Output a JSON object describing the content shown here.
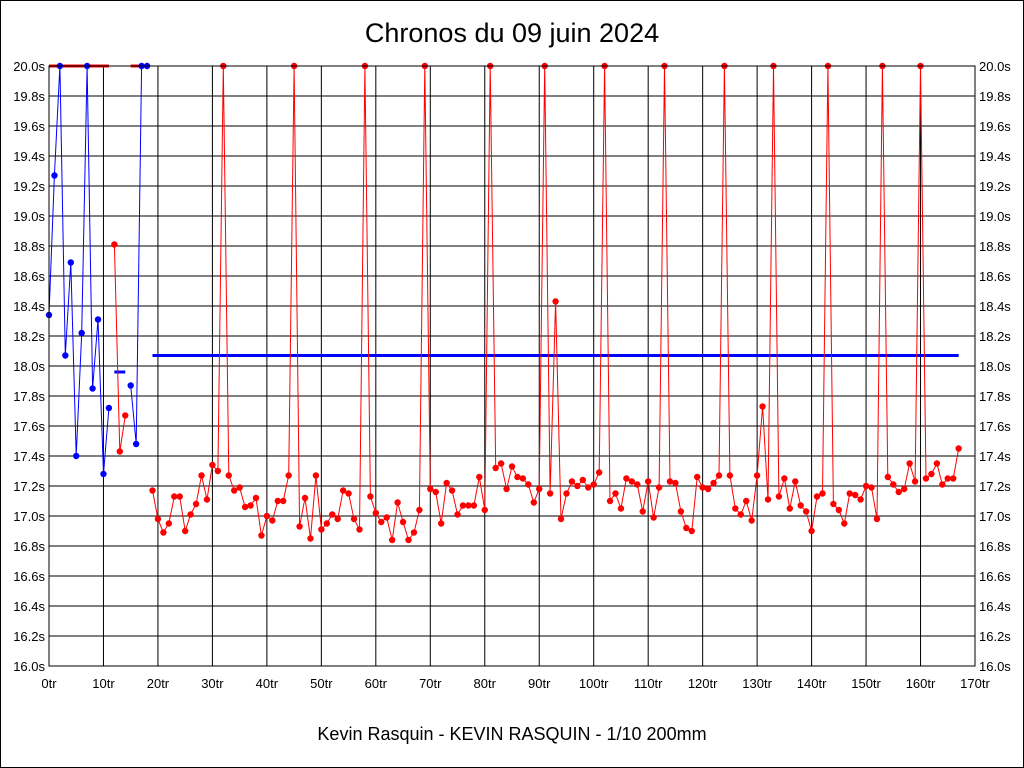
{
  "chart_data": {
    "type": "line",
    "title": "Chronos du 09 juin 2024",
    "footer": "Kevin Rasquin - KEVIN RASQUIN - 1/10 200mm",
    "xlabel": "",
    "ylabel": "",
    "xlim": [
      0,
      170
    ],
    "ylim": [
      16.0,
      20.0
    ],
    "grid": true,
    "x_ticks": [
      "0tr",
      "10tr",
      "20tr",
      "30tr",
      "40tr",
      "50tr",
      "60tr",
      "70tr",
      "80tr",
      "90tr",
      "100tr",
      "110tr",
      "120tr",
      "130tr",
      "140tr",
      "150tr",
      "160tr",
      "170tr"
    ],
    "y_ticks": [
      "16.0s",
      "16.2s",
      "16.4s",
      "16.6s",
      "16.8s",
      "17.0s",
      "17.2s",
      "17.4s",
      "17.6s",
      "17.8s",
      "18.0s",
      "18.2s",
      "18.4s",
      "18.6s",
      "18.8s",
      "19.0s",
      "19.2s",
      "19.4s",
      "19.6s",
      "19.8s",
      "20.0s"
    ],
    "colors": {
      "blue": "#0000ff",
      "red": "#ff0000",
      "grid": "#000000"
    },
    "series": [
      {
        "name": "blue-a",
        "color": "#0000ff",
        "x": [
          0,
          1,
          2,
          3,
          4,
          5,
          6,
          7,
          8,
          9,
          10,
          11
        ],
        "y": [
          18.34,
          19.27,
          20.0,
          18.07,
          18.69,
          17.4,
          18.22,
          20.0,
          17.85,
          18.31,
          17.28,
          17.72
        ]
      },
      {
        "name": "red-a",
        "color": "#ff0000",
        "x": [
          12,
          13,
          14
        ],
        "y": [
          18.81,
          17.43,
          17.67
        ]
      },
      {
        "name": "blue-b",
        "color": "#0000ff",
        "x": [
          15,
          16,
          17,
          18
        ],
        "y": [
          17.87,
          17.48,
          20.0,
          20.0
        ]
      },
      {
        "name": "red-b",
        "color": "#ff0000",
        "x": [
          19,
          20,
          21,
          22,
          23,
          24,
          25,
          26,
          27,
          28,
          29,
          30,
          31,
          32,
          33,
          34,
          35,
          36,
          37,
          38,
          39,
          40,
          41,
          42,
          43,
          44,
          45,
          46,
          47,
          48,
          49,
          50,
          51,
          52,
          53,
          54,
          55,
          56,
          57,
          58,
          59,
          60,
          61,
          62,
          63,
          64,
          65,
          66,
          67,
          68,
          69,
          70,
          71,
          72,
          73,
          74,
          75,
          76,
          77,
          78,
          79,
          80,
          81,
          82,
          83,
          84,
          85,
          86,
          87,
          88,
          89,
          90,
          91,
          92,
          93,
          94,
          95,
          96,
          97,
          98,
          99,
          100,
          101,
          102,
          103,
          104,
          105,
          106,
          107,
          108,
          109,
          110,
          111,
          112,
          113,
          114,
          115,
          116,
          117,
          118,
          119,
          120,
          121,
          122,
          123,
          124,
          125,
          126,
          127,
          128,
          129,
          130,
          131,
          132,
          133,
          134,
          135,
          136,
          137,
          138,
          139,
          140,
          141,
          142,
          143,
          144,
          145,
          146,
          147,
          148,
          149,
          150,
          151,
          152,
          153,
          154,
          155,
          156,
          157,
          158,
          159,
          160,
          161,
          162,
          163,
          164,
          165,
          166,
          167
        ],
        "y": [
          17.17,
          16.98,
          16.89,
          16.95,
          17.13,
          17.13,
          16.9,
          17.01,
          17.08,
          17.27,
          17.11,
          17.34,
          17.3,
          20.0,
          17.27,
          17.17,
          17.19,
          17.06,
          17.07,
          17.12,
          16.87,
          17.0,
          16.97,
          17.1,
          17.1,
          17.27,
          20.0,
          16.93,
          17.12,
          16.85,
          17.27,
          16.91,
          16.95,
          17.01,
          16.98,
          17.17,
          17.15,
          16.98,
          16.91,
          20.0,
          17.13,
          17.02,
          16.96,
          16.99,
          16.84,
          17.09,
          16.96,
          16.84,
          16.89,
          17.04,
          20.0,
          17.18,
          17.16,
          16.95,
          17.22,
          17.17,
          17.01,
          17.07,
          17.07,
          17.07,
          17.26,
          17.04,
          20.0,
          17.32,
          17.35,
          17.18,
          17.33,
          17.26,
          17.25,
          17.21,
          17.09,
          17.18,
          20.0,
          17.15,
          18.43,
          16.98,
          17.15,
          17.23,
          17.2,
          17.24,
          17.19,
          17.21,
          17.29,
          20.0,
          17.1,
          17.15,
          17.05,
          17.25,
          17.23,
          17.21,
          17.03,
          17.23,
          16.99,
          17.19,
          20.0,
          17.23,
          17.22,
          17.03,
          16.92,
          16.9,
          17.26,
          17.19,
          17.18,
          17.22,
          17.27,
          20.0,
          17.27,
          17.05,
          17.01,
          17.1,
          16.97,
          17.27,
          17.73,
          17.11,
          20.0,
          17.13,
          17.25,
          17.05,
          17.23,
          17.07,
          17.03,
          16.9,
          17.13,
          17.15,
          20.0,
          17.08,
          17.04,
          16.95,
          17.15,
          17.14,
          17.11,
          17.2,
          17.19,
          16.98,
          20.0,
          17.26,
          17.21,
          17.16,
          17.18,
          17.35,
          17.23,
          20.0,
          17.25,
          17.28,
          17.35,
          17.21,
          17.25,
          17.25,
          17.45
        ]
      }
    ],
    "capped_segments": [
      {
        "color": "#ff0000",
        "x": [
          0,
          11
        ],
        "y": 20.0
      },
      {
        "color": "#ff0000",
        "x": [
          15,
          18
        ],
        "y": 20.0
      }
    ],
    "reference_lines": [
      {
        "name": "average",
        "color": "#0000ff",
        "x": [
          19,
          167
        ],
        "y": 18.07
      },
      {
        "name": "partial-average",
        "color": "#0000ff",
        "x": [
          12,
          14
        ],
        "y": 17.96
      }
    ]
  }
}
